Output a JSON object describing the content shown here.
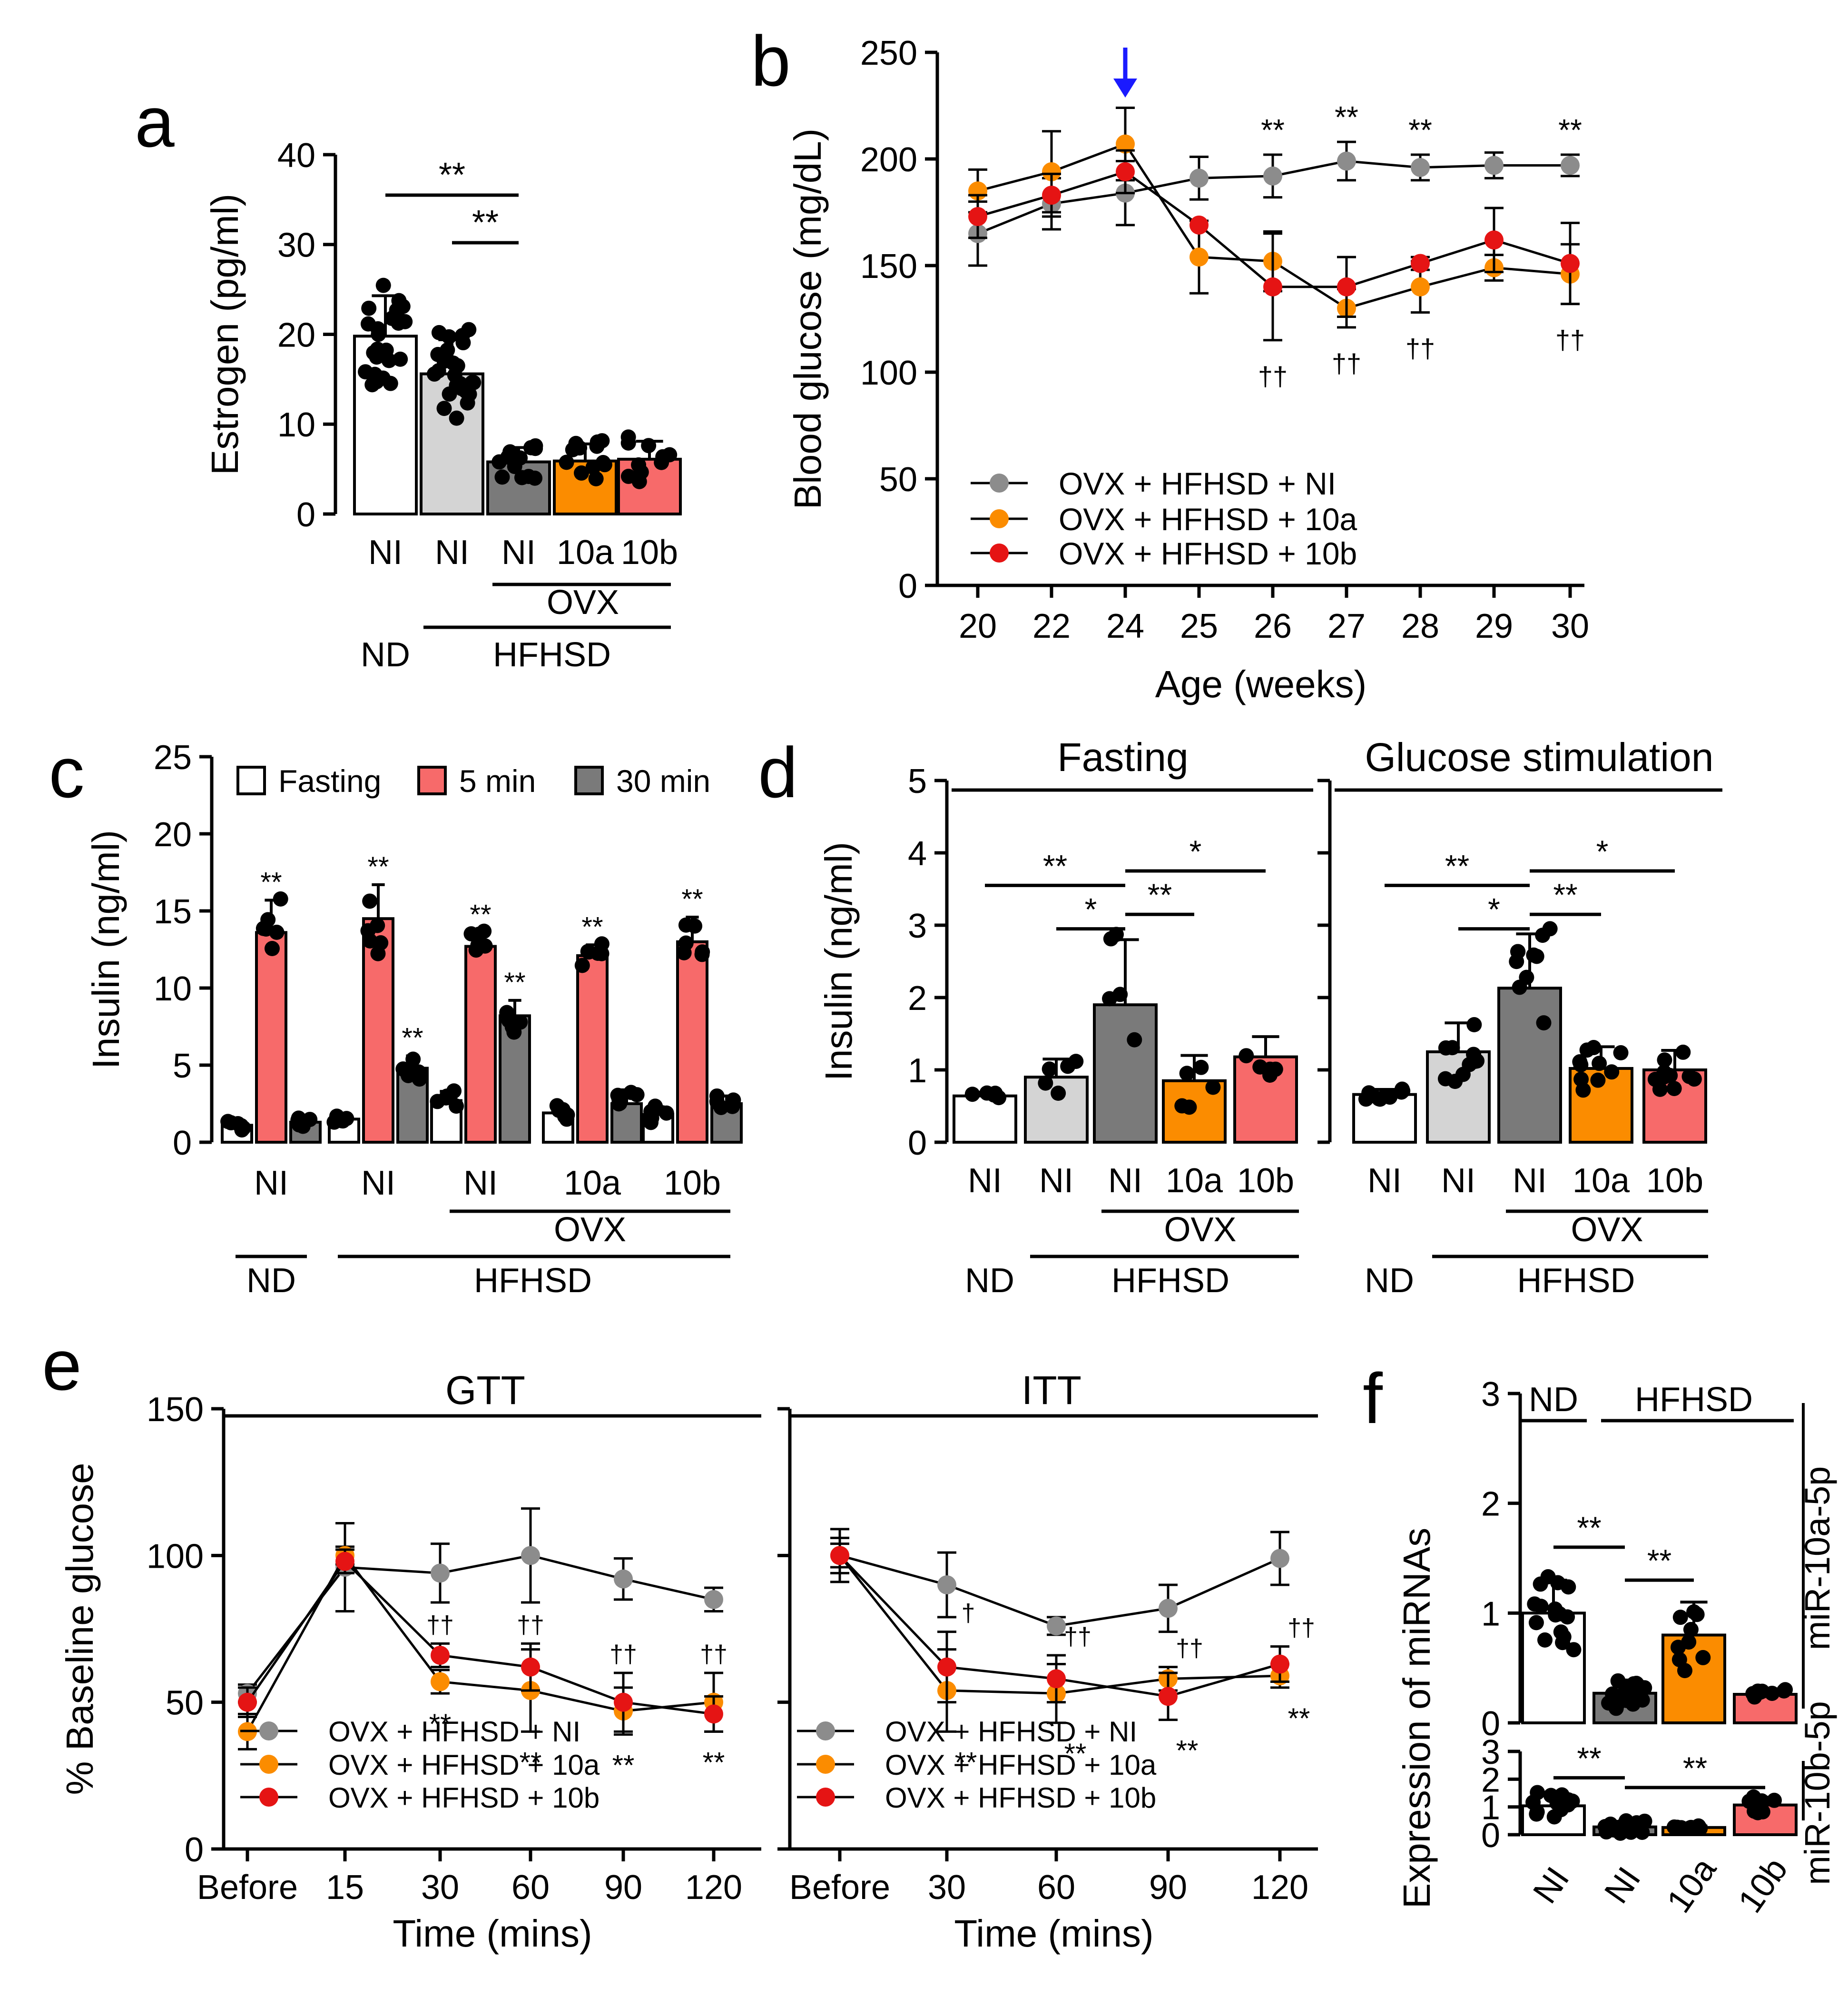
{
  "panels": {
    "a": {
      "letter": "a",
      "ylabel": "Estrogen (pg/ml)",
      "yticks": [
        0,
        10,
        20,
        30,
        40
      ],
      "groups": [
        "NI",
        "NI",
        "NI",
        "10a",
        "10b"
      ],
      "group_lines": [
        {
          "label": "OVX",
          "from": 2,
          "to": 4,
          "row": 1
        },
        {
          "label": "ND",
          "from": 0,
          "to": 0,
          "row": 2,
          "no_line": true
        },
        {
          "label": "HFHSD",
          "from": 1,
          "to": 4,
          "row": 2
        }
      ],
      "sig": [
        {
          "label": "**",
          "from": 0,
          "to": 2,
          "y": 35.5
        },
        {
          "label": "**",
          "from": 1,
          "to": 2,
          "y": 30.2
        }
      ]
    },
    "b": {
      "letter": "b",
      "ylabel": "Blood glucose (mg/dL)",
      "xlabel": "Age (weeks)",
      "yticks": [
        0,
        50,
        100,
        150,
        200,
        250
      ],
      "xticks": [
        "20",
        "22",
        "24",
        "25",
        "26",
        "27",
        "28",
        "29",
        "30"
      ],
      "legend": [
        "OVX + HFHSD + NI",
        "OVX + HFHSD + 10a",
        "OVX + HFHSD + 10b"
      ],
      "stars": [
        {
          "i": 4,
          "label": "**"
        },
        {
          "i": 5,
          "label": "**"
        },
        {
          "i": 6,
          "label": "**"
        },
        {
          "i": 8,
          "label": "**"
        }
      ],
      "daggers": [
        {
          "i": 4,
          "label": "††"
        },
        {
          "i": 5,
          "label": "††"
        },
        {
          "i": 6,
          "label": "††"
        },
        {
          "i": 8,
          "label": "††"
        }
      ]
    },
    "c": {
      "letter": "c",
      "ylabel": "Insulin (ng/ml)",
      "yticks": [
        0,
        5,
        10,
        15,
        20,
        25
      ],
      "legend": [
        "Fasting",
        "5 min",
        "30 min"
      ],
      "groups": [
        "NI",
        "NI",
        "NI",
        "10a",
        "10b"
      ],
      "group_lines": [
        {
          "label": "OVX",
          "from": 2,
          "to": 4,
          "row": 1
        },
        {
          "label": "ND",
          "from": 0,
          "to": 0,
          "row": 2
        },
        {
          "label": "HFHSD",
          "from": 1,
          "to": 4,
          "row": 2
        }
      ]
    },
    "d": {
      "letter": "d",
      "ylabel": "Insulin (ng/ml)",
      "yticks": [
        0,
        1,
        2,
        3,
        4,
        5
      ],
      "sub_titles": [
        "Fasting",
        "Glucose stimulation"
      ],
      "groups": [
        "NI",
        "NI",
        "NI",
        "10a",
        "10b"
      ],
      "group_lines": [
        {
          "label": "OVX",
          "from": 2,
          "to": 4,
          "row": 1
        },
        {
          "label": "ND",
          "from": 0,
          "to": 0,
          "row": 2,
          "no_line": true
        },
        {
          "label": "HFHSD",
          "from": 1,
          "to": 4,
          "row": 2
        }
      ]
    },
    "e": {
      "letter": "e",
      "ylabel": "% Baseline glucose",
      "yticks": [
        0,
        50,
        100,
        150
      ],
      "sub_titles": [
        "GTT",
        "ITT"
      ],
      "xlabel": "Time (mins)",
      "gtt_xticks": [
        "Before",
        "15",
        "30",
        "60",
        "90",
        "120"
      ],
      "itt_xticks": [
        "Before",
        "30",
        "60",
        "90",
        "120"
      ],
      "legend": [
        "OVX + HFHSD + NI",
        "OVX + HFHSD + 10a",
        "OVX + HFHSD + 10b"
      ]
    },
    "f": {
      "letter": "f",
      "ylabel": "Expression of miRNAs",
      "yticks": [
        0,
        1,
        2,
        3
      ],
      "groups": [
        "NI",
        "NI",
        "10a",
        "10b"
      ],
      "header": [
        "ND",
        "HFHSD"
      ],
      "side_labels": [
        "miR-10a-5p",
        "miR-10b-5p"
      ]
    }
  },
  "colors": {
    "white": "#ffffff",
    "light_gray": "#d4d4d4",
    "dark_gray": "#7a7a7a",
    "orange": "#fb8c00",
    "salmon": "#f76a6a",
    "red": "#e51414",
    "gray_line": "#8c8c8c",
    "blue_arrow": "#1a1aff"
  },
  "chart_data": [
    {
      "panel": "a",
      "type": "bar",
      "categories": [
        "ND NI",
        "HFHSD NI",
        "HFHSD OVX NI",
        "HFHSD OVX 10a",
        "HFHSD OVX 10b"
      ],
      "values": [
        19.8,
        15.6,
        5.8,
        5.9,
        6.1
      ],
      "errors": [
        4.5,
        3.8,
        1.6,
        1.9,
        2.0
      ],
      "ylabel": "Estrogen (pg/ml)",
      "ylim": [
        0,
        40
      ]
    },
    {
      "panel": "b",
      "type": "line",
      "x": [
        "20",
        "22",
        "24",
        "25",
        "26",
        "27",
        "28",
        "29",
        "30"
      ],
      "ylim": [
        0,
        250
      ],
      "ylabel": "Blood glucose (mg/dL)",
      "xlabel": "Age (weeks)",
      "series": [
        {
          "name": "OVX + HFHSD + NI",
          "values": [
            165,
            179,
            184,
            191,
            192,
            199,
            196,
            197,
            197
          ],
          "errors": [
            15,
            12,
            15,
            10,
            10,
            9,
            6,
            6,
            5
          ]
        },
        {
          "name": "OVX + HFHSD + 10a",
          "values": [
            185,
            194,
            207,
            154,
            152,
            130,
            140,
            149,
            146
          ],
          "errors": [
            10,
            19,
            17,
            17,
            14,
            9,
            12,
            6,
            14
          ]
        },
        {
          "name": "OVX + HFHSD + 10b",
          "values": [
            173,
            183,
            194,
            169,
            140,
            140,
            151,
            162,
            151
          ],
          "errors": [
            10,
            10,
            10,
            0,
            25,
            14,
            3,
            15,
            19
          ]
        }
      ]
    },
    {
      "panel": "c",
      "type": "bar",
      "categories": [
        "ND NI",
        "HFHSD NI",
        "HFHSD OVX NI",
        "HFHSD OVX 10a",
        "HFHSD OVX 10b"
      ],
      "ylim": [
        0,
        25
      ],
      "ylabel": "Insulin (ng/ml)",
      "series": [
        {
          "name": "Fasting",
          "values": [
            1.1,
            1.5,
            2.7,
            1.9,
            1.8
          ],
          "errors": [
            0.3,
            0.2,
            0.6,
            0.6,
            0.5
          ]
        },
        {
          "name": "5 min",
          "values": [
            13.6,
            14.5,
            12.7,
            12.1,
            13.0
          ],
          "errors": [
            2.1,
            2.2,
            0.9,
            0.7,
            1.6
          ]
        },
        {
          "name": "30 min",
          "values": [
            1.3,
            4.8,
            8.2,
            2.5,
            2.5
          ],
          "errors": [
            0.3,
            0.8,
            1.0,
            0.9,
            0.5
          ]
        }
      ],
      "stars_above": [
        [
          null,
          "**",
          null
        ],
        [
          null,
          "**",
          "**"
        ],
        [
          null,
          "**",
          "**"
        ],
        [
          null,
          "**",
          null
        ],
        [
          null,
          "**",
          null
        ]
      ]
    },
    {
      "panel": "d",
      "type": "bar",
      "categories": [
        "ND NI",
        "HFHSD NI",
        "HFHSD OVX NI",
        "HFHSD OVX 10a",
        "HFHSD OVX 10b"
      ],
      "ylim": [
        0,
        5
      ],
      "ylabel": "Insulin (ng/ml)",
      "series": [
        {
          "name": "Fasting",
          "values": [
            0.64,
            0.9,
            1.9,
            0.85,
            1.18
          ],
          "errors": [
            0.05,
            0.25,
            0.9,
            0.35,
            0.28
          ]
        },
        {
          "name": "Glucose stimulation",
          "values": [
            0.66,
            1.25,
            2.13,
            1.02,
            1.0
          ],
          "errors": [
            0.07,
            0.4,
            0.75,
            0.3,
            0.27
          ]
        }
      ],
      "sig": [
        [
          {
            "label": "**",
            "from": 0,
            "to": 2,
            "y": 3.55
          },
          {
            "label": "*",
            "from": 1,
            "to": 2,
            "y": 2.95
          },
          {
            "label": "**",
            "from": 2,
            "to": 3,
            "y": 3.15
          },
          {
            "label": "*",
            "from": 2,
            "to": 4,
            "y": 3.75
          }
        ],
        [
          {
            "label": "**",
            "from": 0,
            "to": 2,
            "y": 3.55
          },
          {
            "label": "*",
            "from": 1,
            "to": 2,
            "y": 2.95
          },
          {
            "label": "**",
            "from": 2,
            "to": 3,
            "y": 3.15
          },
          {
            "label": "*",
            "from": 2,
            "to": 4,
            "y": 3.75
          }
        ]
      ]
    },
    {
      "panel": "e-GTT",
      "type": "line",
      "x": [
        "Before",
        "15",
        "30",
        "60",
        "90",
        "120"
      ],
      "ylim": [
        0,
        150
      ],
      "ylabel": "% Baseline glucose",
      "xlabel": "Time (mins)",
      "series": [
        {
          "name": "OVX + HFHSD + NI",
          "values": [
            53,
            96,
            94,
            100,
            92,
            85
          ],
          "errors": [
            3,
            15,
            10,
            16,
            7,
            4
          ]
        },
        {
          "name": "OVX + HFHSD + 10a",
          "values": [
            40,
            100,
            57,
            54,
            47,
            50
          ],
          "errors": [
            6,
            3,
            4,
            14,
            8,
            10
          ]
        },
        {
          "name": "OVX + HFHSD + 10b",
          "values": [
            50,
            98,
            66,
            62,
            50,
            46
          ],
          "errors": [
            5,
            4,
            4,
            8,
            10,
            6
          ]
        }
      ],
      "stars": [
        {
          "i": 2,
          "label": "**"
        },
        {
          "i": 3,
          "label": "**"
        },
        {
          "i": 4,
          "label": "**"
        },
        {
          "i": 5,
          "label": "**"
        }
      ],
      "daggers": [
        {
          "i": 2,
          "label": "††"
        },
        {
          "i": 3,
          "label": "††"
        },
        {
          "i": 4,
          "label": "††"
        },
        {
          "i": 5,
          "label": "††"
        }
      ]
    },
    {
      "panel": "e-ITT",
      "type": "line",
      "x": [
        "Before",
        "30",
        "60",
        "90",
        "120"
      ],
      "ylim": [
        0,
        150
      ],
      "xlabel": "Time (mins)",
      "series": [
        {
          "name": "OVX + HFHSD + NI",
          "values": [
            100,
            90,
            76,
            82,
            99
          ],
          "errors": [
            9,
            11,
            3,
            8,
            9
          ]
        },
        {
          "name": "OVX + HFHSD + 10a",
          "values": [
            100,
            54,
            53,
            58,
            59
          ],
          "errors": [
            6,
            14,
            10,
            4,
            4
          ]
        },
        {
          "name": "OVX + HFHSD + 10b",
          "values": [
            100,
            62,
            58,
            52,
            63
          ],
          "errors": [
            4,
            12,
            8,
            8,
            6
          ]
        }
      ],
      "stars": [
        {
          "i": 1,
          "label": "**"
        },
        {
          "i": 2,
          "label": "**"
        },
        {
          "i": 3,
          "label": "**"
        },
        {
          "i": 4,
          "label": "**"
        }
      ],
      "daggers": [
        {
          "i": 1,
          "label": "†"
        },
        {
          "i": 2,
          "label": "††"
        },
        {
          "i": 3,
          "label": "††"
        },
        {
          "i": 4,
          "label": "††"
        }
      ]
    },
    {
      "panel": "f",
      "type": "bar",
      "categories": [
        "ND NI",
        "HFHSD NI",
        "HFHSD 10a",
        "HFHSD 10b"
      ],
      "ylim": [
        0,
        3
      ],
      "ylabel": "Expression of miRNAs",
      "series": [
        {
          "name": "miR-10a-5p",
          "values": [
            1.0,
            0.27,
            0.8,
            0.26
          ],
          "errors": [
            0.3,
            0.12,
            0.3,
            0.05
          ]
        },
        {
          "name": "miR-10b-5p",
          "values": [
            1.04,
            0.28,
            0.26,
            1.07
          ],
          "errors": [
            0.42,
            0.2,
            0.05,
            0.28
          ]
        }
      ],
      "sig": [
        [
          {
            "label": "**",
            "from": 0,
            "to": 1,
            "y": 1.6
          },
          {
            "label": "**",
            "from": 1,
            "to": 2,
            "y": 1.3
          }
        ],
        [
          {
            "label": "**",
            "from": 0,
            "to": 1,
            "y": 2.05
          },
          {
            "label": "**",
            "from": 1,
            "to": 3,
            "y": 1.7
          }
        ]
      ]
    }
  ]
}
